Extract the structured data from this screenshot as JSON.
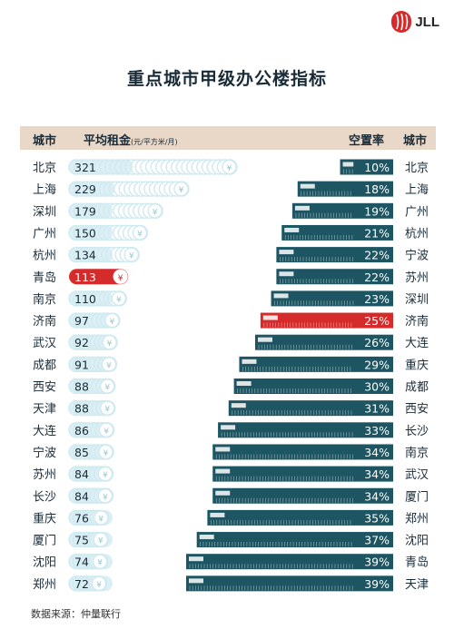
{
  "brand": "JLL",
  "title": "重点城市甲级办公楼指标",
  "header": {
    "city_left": "城市",
    "rent_label": "平均租金",
    "rent_unit": "(元/平方米/月)",
    "vacancy_label": "空置率",
    "city_right": "城市"
  },
  "currency_symbol": "¥",
  "source": "数据来源：仲量联行",
  "colors": {
    "teal": "#1d5562",
    "highlight_red": "#d62b2b",
    "coin_light": "#cfe9f0",
    "header_band": "#e9d8c8",
    "text_dark": "#1a2b38"
  },
  "chart_data": [
    {
      "type": "bar",
      "title": "平均租金",
      "unit": "元/平方米/月",
      "categories": [
        "北京",
        "上海",
        "深圳",
        "广州",
        "杭州",
        "青岛",
        "南京",
        "济南",
        "武汉",
        "成都",
        "西安",
        "天津",
        "大连",
        "宁波",
        "苏州",
        "长沙",
        "重庆",
        "厦门",
        "沈阳",
        "郑州"
      ],
      "values": [
        321,
        229,
        179,
        150,
        134,
        113,
        110,
        97,
        92,
        91,
        88,
        88,
        86,
        85,
        84,
        84,
        76,
        75,
        74,
        72
      ],
      "highlight": "青岛"
    },
    {
      "type": "bar",
      "title": "空置率",
      "categories": [
        "北京",
        "上海",
        "广州",
        "杭州",
        "宁波",
        "苏州",
        "深圳",
        "济南",
        "大连",
        "重庆",
        "成都",
        "西安",
        "长沙",
        "南京",
        "武汉",
        "厦门",
        "郑州",
        "沈阳",
        "青岛",
        "天津"
      ],
      "values": [
        10,
        18,
        19,
        21,
        22,
        22,
        23,
        25,
        26,
        29,
        30,
        31,
        33,
        34,
        34,
        34,
        35,
        37,
        39,
        39
      ],
      "value_labels": [
        "10%",
        "18%",
        "19%",
        "21%",
        "22%",
        "22%",
        "23%",
        "25%",
        "26%",
        "29%",
        "30%",
        "31%",
        "33%",
        "34%",
        "34%",
        "34%",
        "35%",
        "37%",
        "39%",
        "39%"
      ],
      "highlight": "济南"
    }
  ]
}
